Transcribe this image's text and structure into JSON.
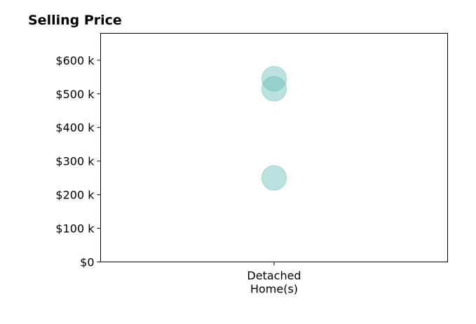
{
  "chart_data": {
    "type": "scatter",
    "title": "Selling Price",
    "xlabel": "",
    "ylabel": "",
    "categories": [
      "Detached\nHome(s)"
    ],
    "series": [
      {
        "category": "Detached\nHome(s)",
        "values": [
          545000,
          515000,
          250000
        ]
      }
    ],
    "yticks": [
      0,
      100000,
      200000,
      300000,
      400000,
      500000,
      600000
    ],
    "ytick_labels": [
      "$0",
      "$100 k",
      "$200 k",
      "$300 k",
      "$400 k",
      "$500 k",
      "$600 k"
    ],
    "ylim": [
      0,
      680000
    ],
    "grid": false,
    "legend": "none",
    "marker_color": "#69bfb5",
    "marker_opacity": 0.45
  }
}
